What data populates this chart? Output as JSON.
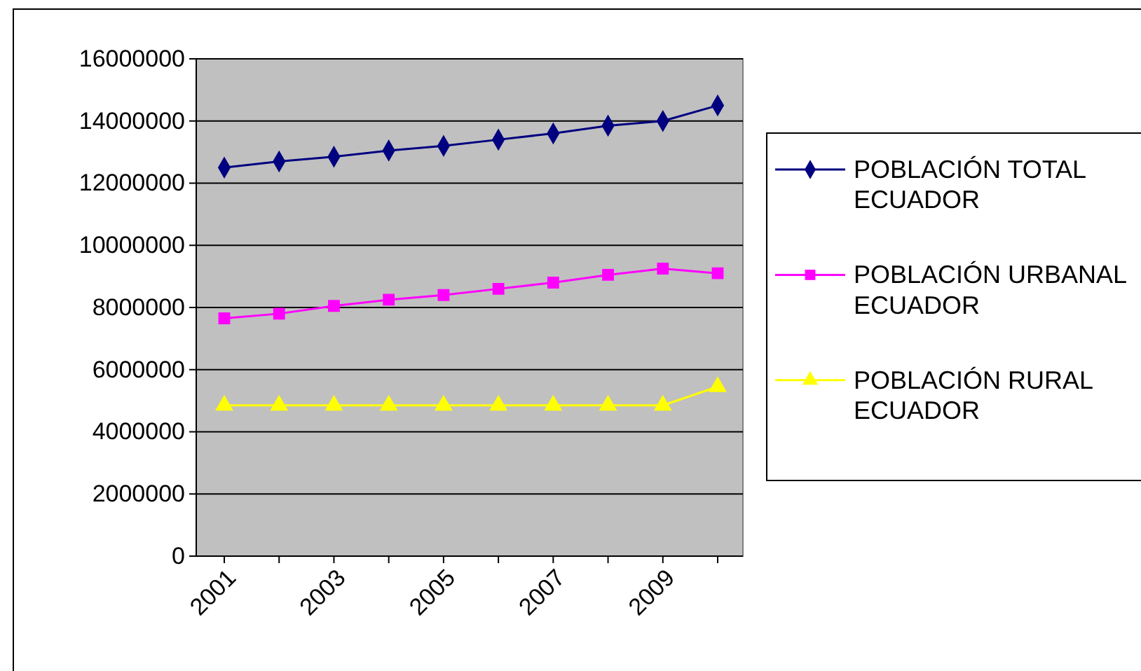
{
  "chart_data": {
    "type": "line",
    "categories": [
      "2001",
      null,
      "2003",
      null,
      "2005",
      null,
      "2007",
      null,
      "2009",
      null
    ],
    "series": [
      {
        "name": "POBLACIÓN TOTAL ECUADOR",
        "color": "#000080",
        "marker": "diamond",
        "values": [
          12500000,
          12700000,
          12850000,
          13050000,
          13200000,
          13400000,
          13600000,
          13850000,
          14000000,
          14500000
        ]
      },
      {
        "name": "POBLACIÓN URBANAL ECUADOR",
        "color": "#ff00ff",
        "marker": "square",
        "values": [
          7650000,
          7800000,
          8050000,
          8250000,
          8400000,
          8600000,
          8800000,
          9050000,
          9250000,
          9100000
        ]
      },
      {
        "name": "POBLACIÓN RURAL ECUADOR",
        "color": "#ffff00",
        "marker": "triangle",
        "values": [
          4850000,
          4850000,
          4850000,
          4850000,
          4850000,
          4850000,
          4850000,
          4850000,
          4850000,
          5450000
        ]
      }
    ],
    "ylim": [
      0,
      16000000
    ],
    "yticks": [
      0,
      2000000,
      4000000,
      6000000,
      8000000,
      10000000,
      12000000,
      14000000,
      16000000
    ],
    "grid": "y",
    "legend": "right"
  }
}
